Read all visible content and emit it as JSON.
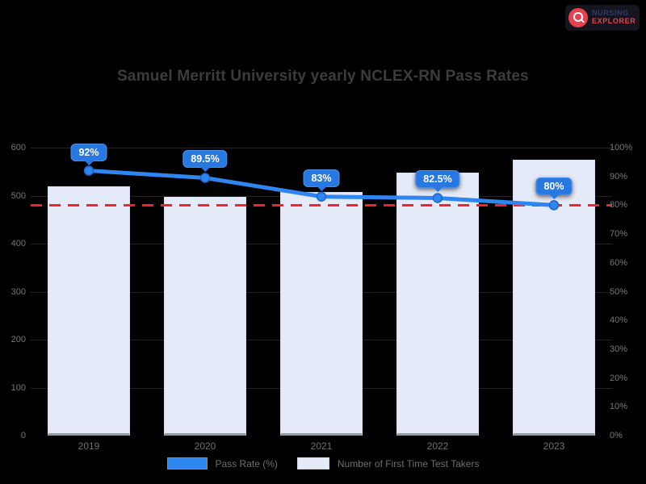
{
  "logo": {
    "top": "Nursing",
    "bottom": "Explorer",
    "badge_color": "#e8404e"
  },
  "legend": {
    "items": [
      {
        "label": "Pass Rate (%)",
        "swatch": "#2e86f0"
      },
      {
        "label": "Number of First Time Test Takers",
        "swatch": "#e5eaf8"
      }
    ]
  },
  "chart_data": {
    "type": "bar+line",
    "title": "Samuel Merritt University yearly NCLEX-RN Pass Rates",
    "categories": [
      "2019",
      "2020",
      "2021",
      "2022",
      "2023"
    ],
    "series": [
      {
        "name": "Pass Rate (%)",
        "type": "line",
        "axis": "right",
        "color": "#2e86f0",
        "values": [
          92,
          89.5,
          83,
          82.5,
          80
        ],
        "point_labels": [
          "92%",
          "89.5%",
          "83%",
          "82.5%",
          "80%"
        ]
      },
      {
        "name": "Number of First Time Test Takers",
        "type": "bar",
        "axis": "left",
        "color": "#e5eaf8",
        "values": [
          520,
          497,
          507,
          548,
          574
        ]
      }
    ],
    "left_axis": {
      "min": 0,
      "max": 600,
      "step": 100,
      "tick_values": [
        0,
        100,
        200,
        300,
        400,
        500,
        600
      ],
      "tick_labels": [
        "0",
        "100",
        "200",
        "300",
        "400",
        "500",
        "600"
      ]
    },
    "right_axis": {
      "min": 0,
      "max": 100,
      "step": 10,
      "tick_values": [
        0,
        10,
        20,
        30,
        40,
        50,
        60,
        70,
        80,
        90,
        100
      ],
      "tick_labels": [
        "0%",
        "10%",
        "20%",
        "30%",
        "40%",
        "50%",
        "60%",
        "70%",
        "80%",
        "90%",
        "100%"
      ]
    },
    "reference_line": {
      "value": 80,
      "color": "#f5222d",
      "style": "dashed"
    },
    "grid": "subtle",
    "legend_position": "bottom"
  }
}
